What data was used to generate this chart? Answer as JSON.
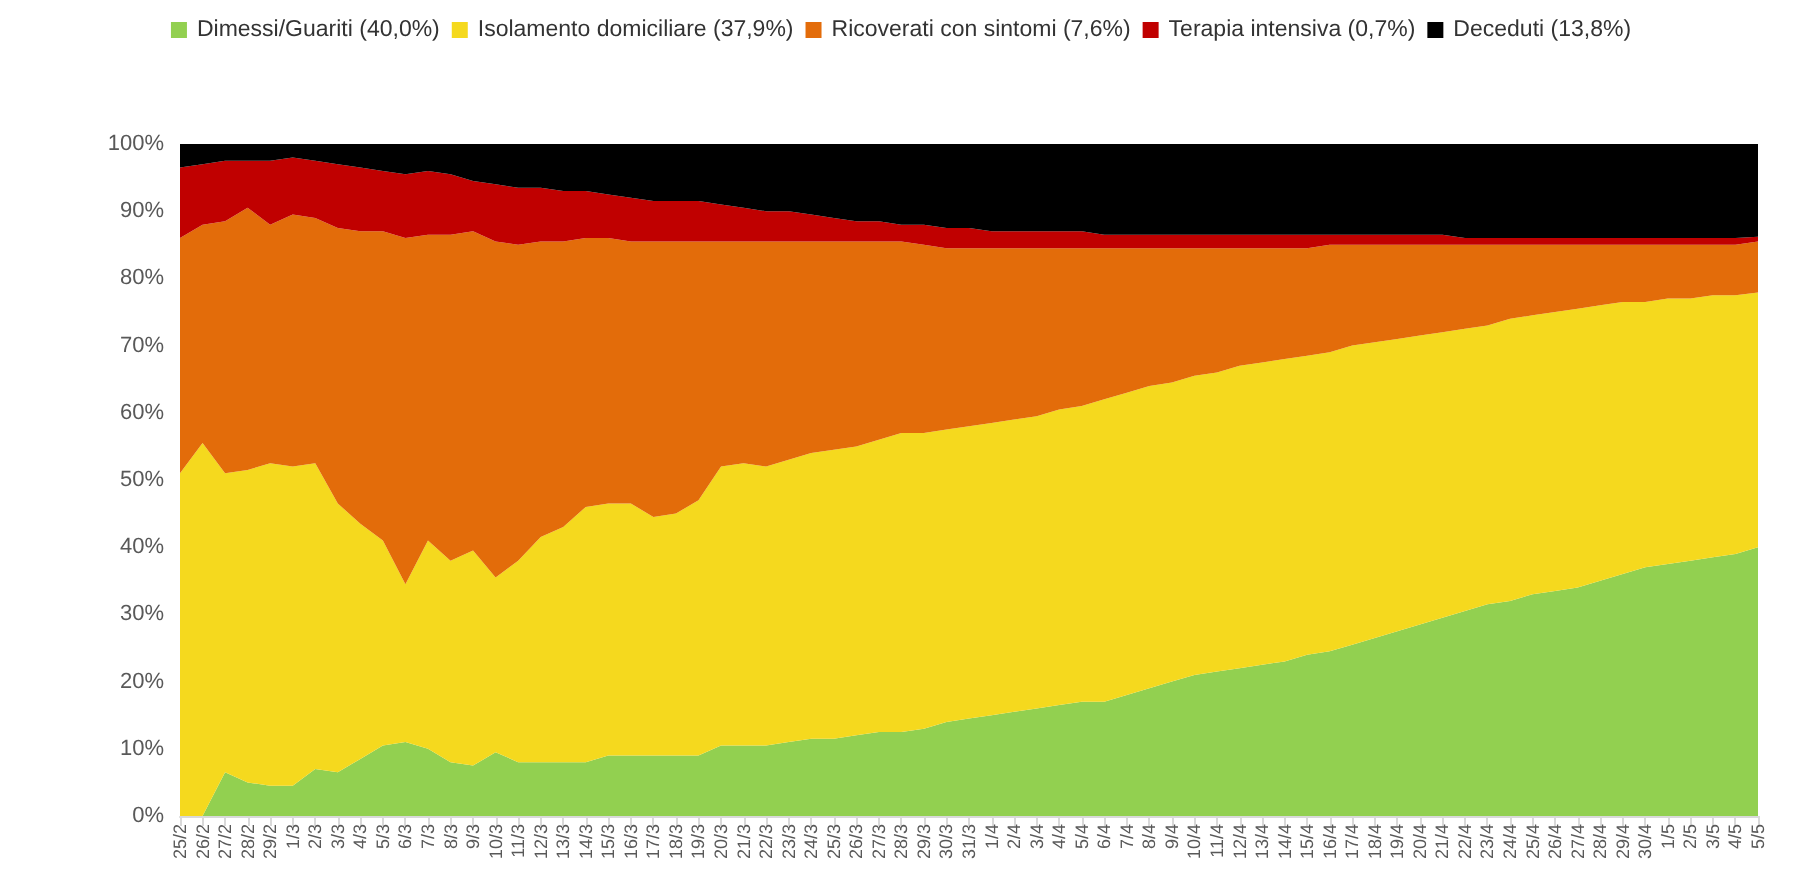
{
  "chart_data": {
    "type": "area",
    "stacked": true,
    "legend": "top",
    "grid": false,
    "categories": [
      "25/2",
      "26/2",
      "27/2",
      "28/2",
      "29/2",
      "1/3",
      "2/3",
      "3/3",
      "4/3",
      "5/3",
      "6/3",
      "7/3",
      "8/3",
      "9/3",
      "10/3",
      "11/3",
      "12/3",
      "13/3",
      "14/3",
      "15/3",
      "16/3",
      "17/3",
      "18/3",
      "19/3",
      "20/3",
      "21/3",
      "22/3",
      "23/3",
      "24/3",
      "25/3",
      "26/3",
      "27/3",
      "28/3",
      "29/3",
      "30/3",
      "31/3",
      "1/4",
      "2/4",
      "3/4",
      "4/4",
      "5/4",
      "6/4",
      "7/4",
      "8/4",
      "9/4",
      "10/4",
      "11/4",
      "12/4",
      "13/4",
      "14/4",
      "15/4",
      "16/4",
      "17/4",
      "18/4",
      "19/4",
      "20/4",
      "21/4",
      "22/4",
      "23/4",
      "24/4",
      "25/4",
      "26/4",
      "27/4",
      "28/4",
      "29/4",
      "30/4",
      "1/5",
      "2/5",
      "3/5",
      "4/5",
      "5/5"
    ],
    "ylim": [
      0,
      100
    ],
    "yticks": [
      {
        "value": 0,
        "label": "0%"
      },
      {
        "value": 10,
        "label": "10%"
      },
      {
        "value": 20,
        "label": "20%"
      },
      {
        "value": 30,
        "label": "30%"
      },
      {
        "value": 40,
        "label": "40%"
      },
      {
        "value": 50,
        "label": "50%"
      },
      {
        "value": 60,
        "label": "60%"
      },
      {
        "value": 70,
        "label": "70%"
      },
      {
        "value": 80,
        "label": "80%"
      },
      {
        "value": 90,
        "label": "90%"
      },
      {
        "value": 100,
        "label": "100%"
      }
    ],
    "series": [
      {
        "name": "Dimessi/Guariti (40,0%)",
        "color": "#92d050",
        "values": [
          0,
          0,
          6.5,
          5,
          4.5,
          4.5,
          7,
          6.5,
          8.5,
          10.5,
          11,
          10,
          8,
          7.5,
          9.5,
          8,
          8,
          8,
          8,
          9,
          9,
          9,
          9,
          9,
          10.5,
          10.5,
          10.5,
          11,
          11.5,
          11.5,
          12,
          12.5,
          12.5,
          13,
          14,
          14.5,
          15,
          15.5,
          16,
          16.5,
          17,
          17,
          18,
          19,
          20,
          21,
          21.5,
          22,
          22.5,
          23,
          24,
          24.5,
          25.5,
          26.5,
          27.5,
          28.5,
          29.5,
          30.5,
          31.5,
          32,
          33,
          33.5,
          34,
          35,
          36,
          37,
          37.5,
          38,
          38.5,
          39,
          40
        ]
      },
      {
        "name": "Isolamento domiciliare (37,9%)",
        "color": "#f5d91e",
        "values": [
          51,
          55.5,
          44.5,
          46.5,
          48,
          47.5,
          45.5,
          40,
          35,
          30.5,
          23.5,
          31,
          30,
          32,
          26,
          30,
          33.5,
          35,
          38,
          37.5,
          37.5,
          35.5,
          36,
          38,
          41.5,
          42,
          41.5,
          42,
          42.5,
          43,
          43,
          43.5,
          44.5,
          44,
          43.5,
          43.5,
          43.5,
          43.5,
          43.5,
          44,
          44,
          45,
          45,
          45,
          44.5,
          44.5,
          44.5,
          45,
          45,
          45,
          44.5,
          44.5,
          44.5,
          44,
          43.5,
          43,
          42.5,
          42,
          41.5,
          42,
          41.5,
          41.5,
          41.5,
          41,
          40.5,
          39.5,
          39.5,
          39,
          39,
          38.5,
          37.9
        ]
      },
      {
        "name": "Ricoverati con sintomi (7,6%)",
        "color": "#e36c0a",
        "values": [
          35,
          32.5,
          37.5,
          39,
          35.5,
          37.5,
          36.5,
          41,
          43.5,
          46,
          51.5,
          45.5,
          48.5,
          47.5,
          50,
          47,
          44,
          42.5,
          40,
          39.5,
          39,
          41,
          40.5,
          38.5,
          33.5,
          33,
          33.5,
          32.5,
          31.5,
          31,
          30.5,
          29.5,
          28.5,
          28,
          27,
          26.5,
          26,
          25.5,
          25,
          24,
          23.5,
          22.5,
          21.5,
          20.5,
          20,
          19,
          18.5,
          17.5,
          17,
          16.5,
          16,
          16,
          15,
          14.5,
          14,
          13.5,
          13,
          12.5,
          12,
          11,
          10.5,
          10,
          9.5,
          9,
          8.5,
          8.5,
          8,
          8,
          7.5,
          7.5,
          7.6
        ]
      },
      {
        "name": "Terapia intensiva (0,7%)",
        "color": "#c00000",
        "values": [
          10.5,
          9,
          9,
          7,
          9.5,
          8.5,
          8.5,
          9.5,
          9.5,
          9,
          9.5,
          9.5,
          9,
          7.5,
          8.5,
          8.5,
          8,
          7.5,
          7,
          6.5,
          6.5,
          6,
          6,
          6,
          5.5,
          5,
          4.5,
          4.5,
          4,
          3.5,
          3,
          3,
          2.5,
          3,
          3,
          3,
          2.5,
          2.5,
          2.5,
          2.5,
          2.5,
          2,
          2,
          2,
          2,
          2,
          2,
          2,
          2,
          2,
          2,
          1.5,
          1.5,
          1.5,
          1.5,
          1.5,
          1.5,
          1,
          1,
          1,
          1,
          1,
          1,
          1,
          1,
          1,
          1,
          1,
          1,
          1,
          0.7
        ]
      },
      {
        "name": "Deceduti (13,8%)",
        "color": "#000000",
        "values": [
          3.5,
          3,
          2.5,
          2.5,
          2.5,
          2,
          2.5,
          3,
          3.5,
          4,
          4.5,
          4,
          4.5,
          5.5,
          6,
          6.5,
          6.5,
          7,
          7,
          7.5,
          8,
          8.5,
          8.5,
          8.5,
          9,
          9.5,
          10,
          10,
          10.5,
          11,
          11.5,
          11.5,
          12,
          12,
          12.5,
          12.5,
          13,
          13,
          13,
          13,
          13,
          13.5,
          13.5,
          13.5,
          13.5,
          13.5,
          13.5,
          13.5,
          13.5,
          13.5,
          13.5,
          13.5,
          13.5,
          13.5,
          13.5,
          13.5,
          13.5,
          14,
          14,
          14,
          14,
          14,
          14,
          14,
          14,
          14,
          14,
          14,
          14,
          14,
          13.8
        ]
      }
    ]
  }
}
